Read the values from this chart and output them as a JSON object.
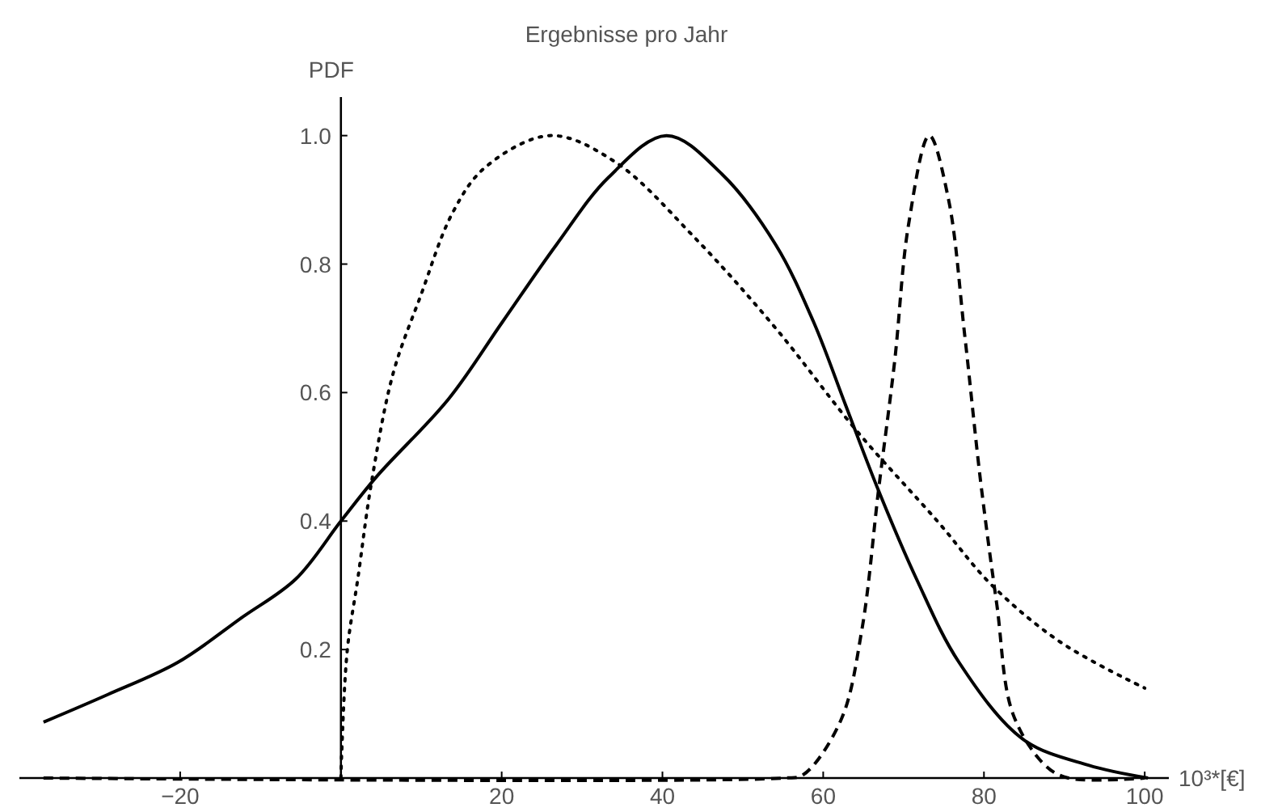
{
  "chart_data": {
    "type": "line",
    "title": "Ergebnisse pro Jahr",
    "xlabel": "10³*[€]",
    "ylabel": "PDF",
    "xlim": [
      -40,
      103
    ],
    "ylim": [
      0,
      1.06
    ],
    "xticks": [
      -20,
      20,
      40,
      60,
      80,
      100
    ],
    "yticks": [
      {
        "value": 0.2,
        "label": "0.2"
      },
      {
        "value": 0.4,
        "label": "0.4"
      },
      {
        "value": 0.6,
        "label": "0.6"
      },
      {
        "value": 0.8,
        "label": "0.8"
      },
      {
        "value": 1,
        "label": "1.0"
      }
    ],
    "grid": false,
    "series": [
      {
        "color": "#000000",
        "line_style": "solid",
        "x": [
          -37,
          -29,
          -20.3,
          -12.3,
          -5.6,
          0,
          4.5,
          13.4,
          20.1,
          26.8,
          33.3,
          40.5,
          47.4,
          54.1,
          58.8,
          62.8,
          66.8,
          71.6,
          76.9,
          84.9,
          93,
          100.4
        ],
        "values": [
          0.087,
          0.13,
          0.18,
          0.25,
          0.31,
          0.4,
          0.47,
          0.59,
          0.71,
          0.83,
          0.935,
          1.0,
          0.94,
          0.83,
          0.71,
          0.58,
          0.45,
          0.31,
          0.18,
          0.06,
          0.02,
          0
        ]
      },
      {
        "color": "#000000",
        "line_style": "dotted",
        "x": [
          0,
          0.1,
          0.8,
          2.1,
          3.8,
          6.5,
          9.9,
          13.9,
          17.9,
          26,
          34,
          44.1,
          54.1,
          64.2,
          74.2,
          81,
          89.7,
          100
        ],
        "values": [
          0,
          0.04,
          0.2,
          0.31,
          0.46,
          0.63,
          0.75,
          0.88,
          0.95,
          1.0,
          0.96,
          0.84,
          0.7,
          0.54,
          0.4,
          0.3,
          0.21,
          0.14
        ]
      },
      {
        "color": "#000000",
        "line_style": "dashed",
        "x": [
          -37,
          55,
          57.5,
          62.2,
          64.8,
          66.9,
          68.9,
          70.6,
          73.2,
          75.6,
          77.6,
          79.6,
          81.6,
          83.6,
          87.6,
          90.5,
          100
        ],
        "values": [
          0,
          0,
          0.005,
          0.09,
          0.23,
          0.45,
          0.65,
          0.86,
          1.0,
          0.9,
          0.69,
          0.46,
          0.27,
          0.1,
          0.02,
          0,
          0
        ]
      }
    ]
  }
}
